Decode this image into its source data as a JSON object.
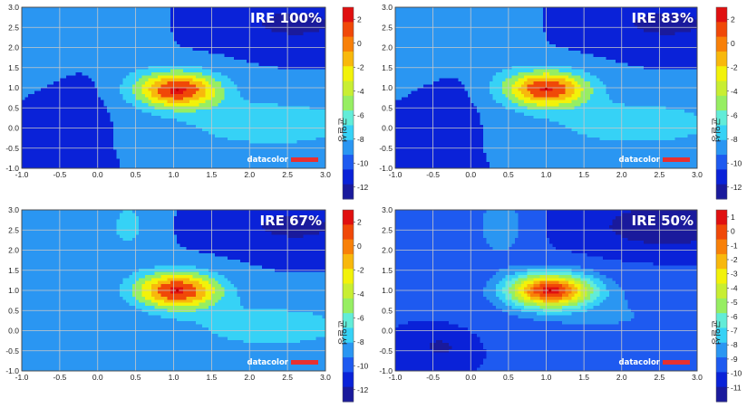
{
  "chart_data": [
    {
      "type": "contour",
      "title": "IRE 100%",
      "xlim": [
        -1.0,
        3.0
      ],
      "ylim": [
        -1.0,
        3.0
      ],
      "xticks": [
        "-1.0",
        "-0.5",
        "0.0",
        "0.5",
        "1.0",
        "1.5",
        "2.0",
        "2.5",
        "3.0"
      ],
      "yticks": [
        "-1.0",
        "-0.5",
        "0.0",
        "0.5",
        "1.0",
        "1.5",
        "2.0",
        "2.5",
        "3.0"
      ],
      "colorbar_ticks": [
        "2",
        "0",
        "-2",
        "-4",
        "-6",
        "-8",
        "-10",
        "-12"
      ],
      "colorbar_range": [
        -13,
        3
      ],
      "colorbar_label": "균일성",
      "logo": "datacolor",
      "grid": true,
      "peak": {
        "x": 1.05,
        "y": 0.95
      }
    },
    {
      "type": "contour",
      "title": "IRE 83%",
      "xlim": [
        -1.0,
        3.0
      ],
      "ylim": [
        -1.0,
        3.0
      ],
      "xticks": [
        "-1.0",
        "-0.5",
        "0.0",
        "0.5",
        "1.0",
        "1.5",
        "2.0",
        "2.5",
        "3.0"
      ],
      "yticks": [
        "-1.0",
        "-0.5",
        "0.0",
        "0.5",
        "1.0",
        "1.5",
        "2.0",
        "2.5",
        "3.0"
      ],
      "colorbar_ticks": [
        "2",
        "0",
        "-2",
        "-4",
        "-6",
        "-8",
        "-10",
        "-12"
      ],
      "colorbar_range": [
        -13,
        3
      ],
      "colorbar_label": "균일성",
      "logo": "datacolor",
      "grid": true,
      "peak": {
        "x": 1.0,
        "y": 0.97
      }
    },
    {
      "type": "contour",
      "title": "IRE 67%",
      "xlim": [
        -1.0,
        3.0
      ],
      "ylim": [
        -1.0,
        3.0
      ],
      "xticks": [
        "-1.0",
        "-0.5",
        "0.0",
        "0.5",
        "1.0",
        "1.5",
        "2.0",
        "2.5",
        "3.0"
      ],
      "yticks": [
        "-1.0",
        "-0.5",
        "0.0",
        "0.5",
        "1.0",
        "1.5",
        "2.0",
        "2.5",
        "3.0"
      ],
      "colorbar_ticks": [
        "2",
        "0",
        "-2",
        "-4",
        "-6",
        "-8",
        "-10",
        "-12"
      ],
      "colorbar_range": [
        -13,
        3
      ],
      "colorbar_label": "균일성",
      "logo": "datacolor",
      "grid": true,
      "peak": {
        "x": 1.05,
        "y": 1.0
      }
    },
    {
      "type": "contour",
      "title": "IRE 50%",
      "xlim": [
        -1.0,
        3.0
      ],
      "ylim": [
        -1.0,
        3.0
      ],
      "xticks": [
        "-1.0",
        "-0.5",
        "0.0",
        "0.5",
        "1.0",
        "1.5",
        "2.0",
        "2.5",
        "3.0"
      ],
      "yticks": [
        "-1.0",
        "-0.5",
        "0.0",
        "0.5",
        "1.0",
        "1.5",
        "2.0",
        "2.5",
        "3.0"
      ],
      "colorbar_ticks": [
        "1",
        "0",
        "-1",
        "-2",
        "-3",
        "-4",
        "-5",
        "-6",
        "-7",
        "-8",
        "-9",
        "-10",
        "-11"
      ],
      "colorbar_range": [
        -12,
        1.5
      ],
      "colorbar_label": "균일성",
      "logo": "datacolor",
      "grid": true,
      "peak": {
        "x": 1.05,
        "y": 1.0
      }
    }
  ],
  "colors": {
    "palette": [
      "#1a1a9c",
      "#0a22d8",
      "#1e5af0",
      "#2a96f2",
      "#36d2f6",
      "#62ecd8",
      "#96ee62",
      "#c8ee32",
      "#f2f20a",
      "#f8b80c",
      "#f88008",
      "#f04808",
      "#e01010"
    ],
    "logo_bar": "#e83030",
    "grid": "#c8c8c8"
  }
}
